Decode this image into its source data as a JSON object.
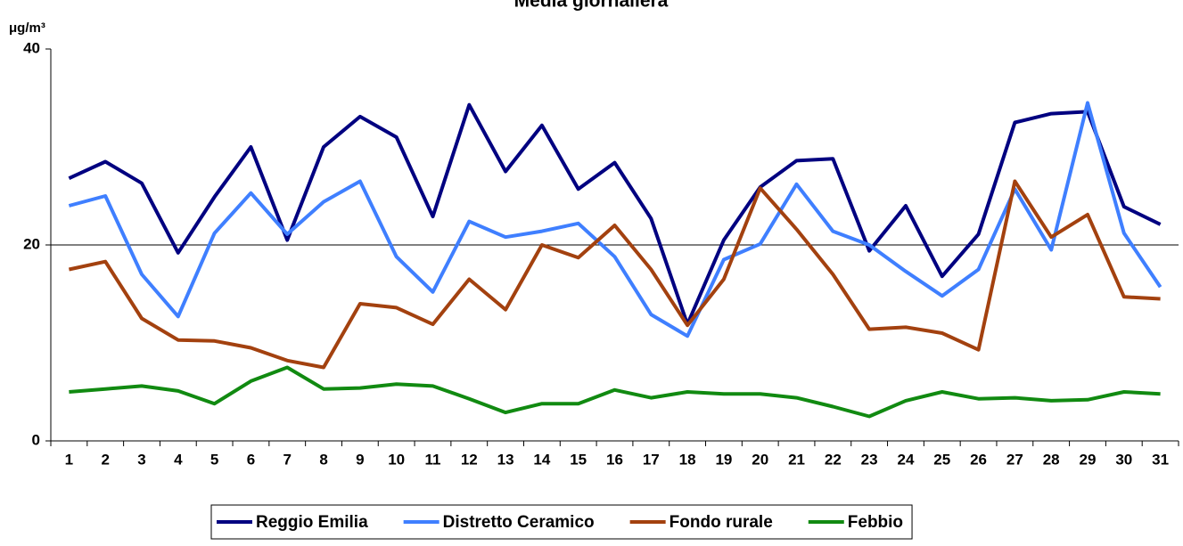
{
  "chart_data": {
    "type": "line",
    "title": "Media giornaliera",
    "y_unit": "μg/m³",
    "categories": [
      "1",
      "2",
      "3",
      "4",
      "5",
      "6",
      "7",
      "8",
      "9",
      "10",
      "11",
      "12",
      "13",
      "14",
      "15",
      "16",
      "17",
      "18",
      "19",
      "20",
      "21",
      "22",
      "23",
      "24",
      "25",
      "26",
      "27",
      "28",
      "29",
      "30",
      "31"
    ],
    "series": [
      {
        "name": "Reggio Emilia",
        "color": "#000080",
        "values": [
          26.8,
          28.5,
          26.3,
          19.2,
          24.9,
          30.0,
          20.5,
          30.0,
          33.1,
          31.0,
          22.9,
          34.3,
          27.5,
          32.2,
          25.7,
          28.4,
          22.7,
          11.9,
          20.5,
          25.9,
          28.6,
          28.8,
          19.4,
          24.0,
          16.8,
          21.1,
          32.5,
          33.4,
          33.6,
          23.9,
          22.1
        ]
      },
      {
        "name": "Distretto Ceramico",
        "color": "#3f7fff",
        "values": [
          24.0,
          25.0,
          17.0,
          12.7,
          21.2,
          25.3,
          21.1,
          24.4,
          26.5,
          18.8,
          15.2,
          22.4,
          20.8,
          21.4,
          22.2,
          18.8,
          12.9,
          10.7,
          18.5,
          20.1,
          26.2,
          21.4,
          20.0,
          17.3,
          14.8,
          17.5,
          25.7,
          19.5,
          34.5,
          21.2,
          15.7
        ]
      },
      {
        "name": "Fondo rurale",
        "color": "#a3410f",
        "values": [
          17.5,
          18.3,
          12.5,
          10.3,
          10.2,
          9.5,
          8.2,
          7.5,
          14.0,
          13.6,
          11.9,
          16.5,
          13.4,
          20.0,
          18.7,
          22.0,
          17.5,
          11.8,
          16.5,
          25.8,
          21.6,
          17.0,
          11.4,
          11.6,
          11.0,
          9.3,
          26.5,
          20.8,
          23.1,
          14.7,
          14.5
        ]
      },
      {
        "name": "Febbio",
        "color": "#118a11",
        "values": [
          5.0,
          5.3,
          5.6,
          5.1,
          3.8,
          6.1,
          7.5,
          5.3,
          5.4,
          5.8,
          5.6,
          4.3,
          2.9,
          3.8,
          3.8,
          5.2,
          4.4,
          5.0,
          4.8,
          4.8,
          4.4,
          3.5,
          2.5,
          4.1,
          5.0,
          4.3,
          4.4,
          4.1,
          4.2,
          5.0,
          4.8
        ]
      }
    ],
    "ylim": [
      0,
      40
    ],
    "yticks": [
      0,
      20,
      40
    ],
    "grid": true,
    "legend": "bottom"
  }
}
